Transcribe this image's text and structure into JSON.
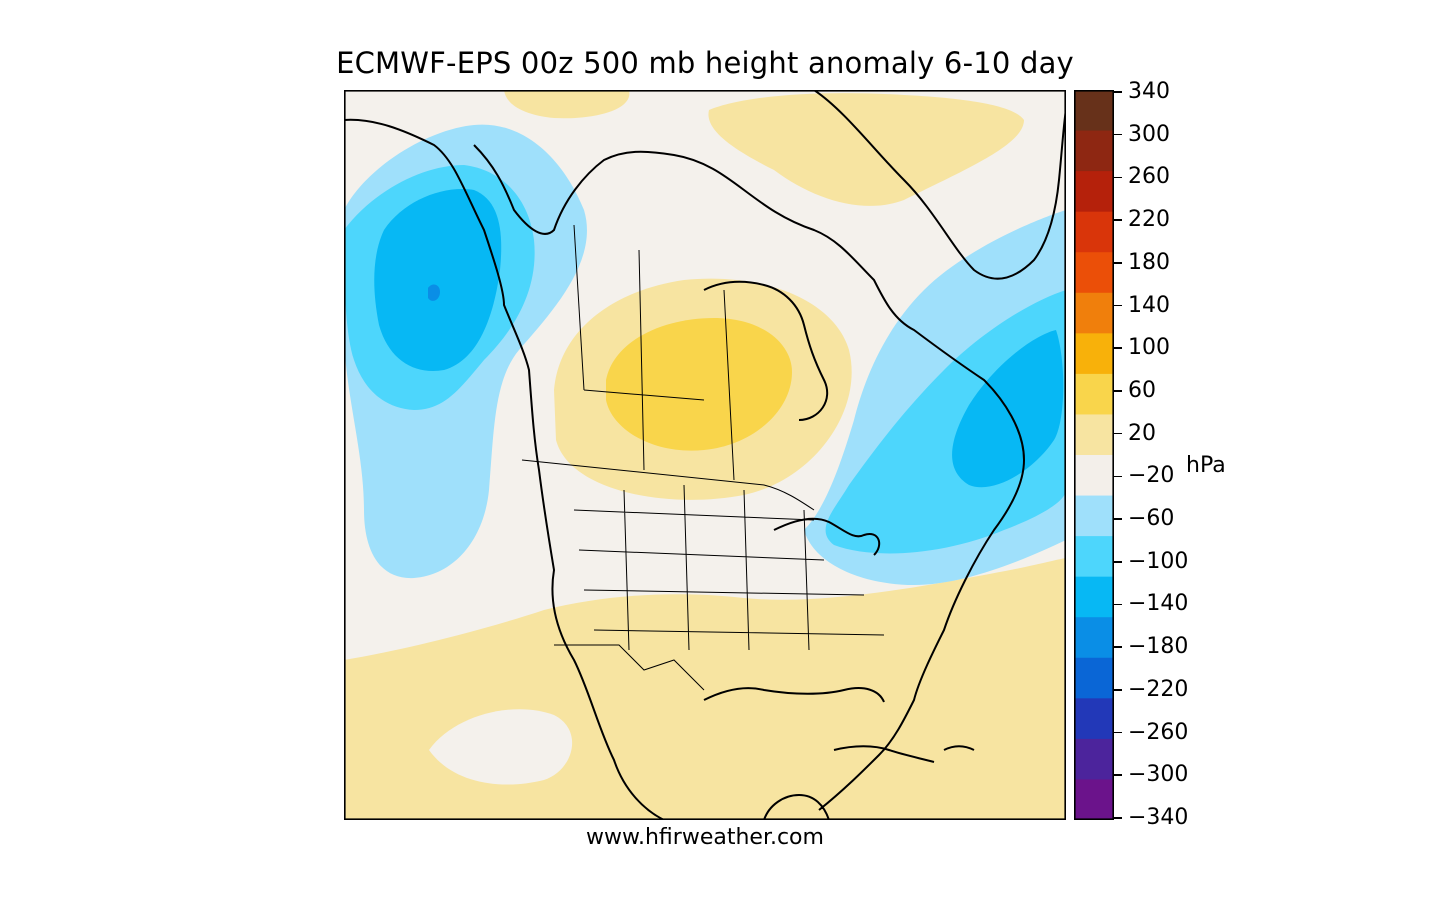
{
  "title": "ECMWF-EPS 00z 500 mb height anomaly 6-10 day",
  "credit": "www.hfirweather.com",
  "colorbar": {
    "unit": "hPa",
    "ticks": [
      "340",
      "300",
      "260",
      "220",
      "180",
      "140",
      "100",
      "60",
      "20",
      "−20",
      "−60",
      "−100",
      "−140",
      "−180",
      "−220",
      "−260",
      "−300",
      "−340"
    ],
    "bins": [
      {
        "color": "#67311a"
      },
      {
        "color": "#8e2712"
      },
      {
        "color": "#b5210b"
      },
      {
        "color": "#d9350a"
      },
      {
        "color": "#eb4f08"
      },
      {
        "color": "#f07f0c"
      },
      {
        "color": "#f8b10a"
      },
      {
        "color": "#f9d54b"
      },
      {
        "color": "#f7e4a1"
      },
      {
        "color": "#f3efea"
      },
      {
        "color": "#9fe0fb"
      },
      {
        "color": "#4dd6fc"
      },
      {
        "color": "#07b8f4"
      },
      {
        "color": "#0a8ee6"
      },
      {
        "color": "#0a66d6"
      },
      {
        "color": "#2238b8"
      },
      {
        "color": "#4c249c"
      },
      {
        "color": "#6b138b"
      }
    ]
  },
  "map_colors": {
    "background": "#f4f1ec",
    "pos_20_60": "#f7e4a1",
    "pos_60_100": "#f9d54b",
    "neg_20_60": "#9fe0fb",
    "neg_60_100": "#4dd6fc",
    "neg_100_140": "#07b8f4",
    "neg_140_180": "#0a8ee6",
    "coastline": "#000000"
  }
}
